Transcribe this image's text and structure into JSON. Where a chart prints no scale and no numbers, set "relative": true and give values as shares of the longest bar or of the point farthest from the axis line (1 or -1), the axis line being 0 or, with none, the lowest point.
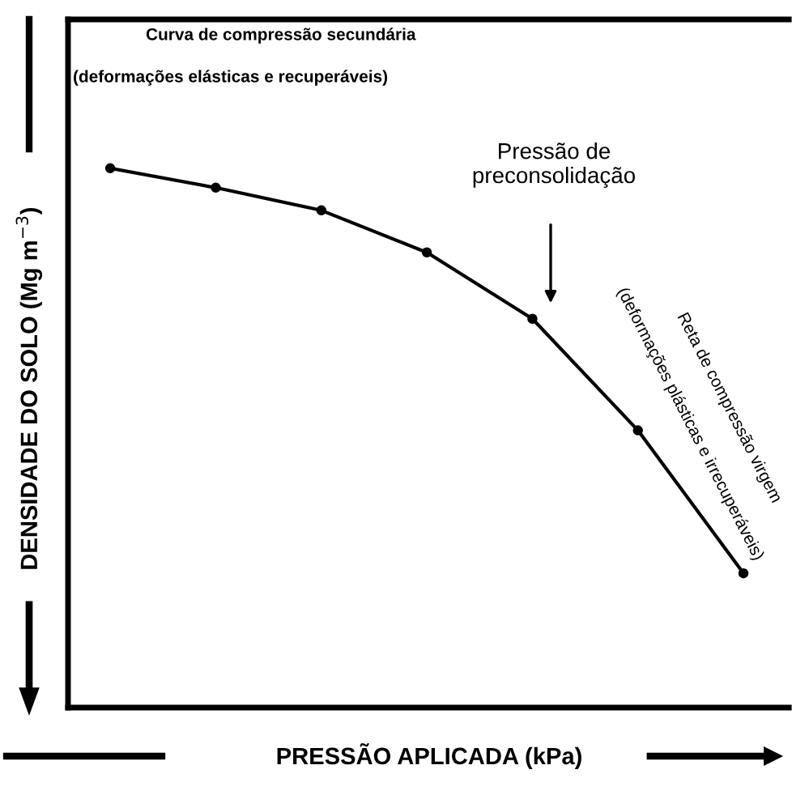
{
  "chart_data": {
    "type": "line",
    "relative": true,
    "marker": "circle",
    "line_style": "solid",
    "grid": false,
    "xlabel": "PRESSÃO APLICADA (kPa)",
    "ylabel": "DENSIDADE DO SOLO (Mg m$^{−3}$)",
    "categories": [
      null,
      null,
      null,
      null,
      null,
      null,
      null
    ],
    "series": [
      {
        "color": "#000000",
        "values": [
          1,
          0.964,
          0.922,
          0.844,
          0.721,
          0.514,
          0.249
        ]
      }
    ],
    "annotations": [
      "Curva de compressão secundária",
      "(deformações elásticas e recuperáveis)",
      "Pressão de\npreconsolidação",
      "Reta de compressão virgem",
      "(deformações plásticas e irrecuperáveis)"
    ]
  }
}
